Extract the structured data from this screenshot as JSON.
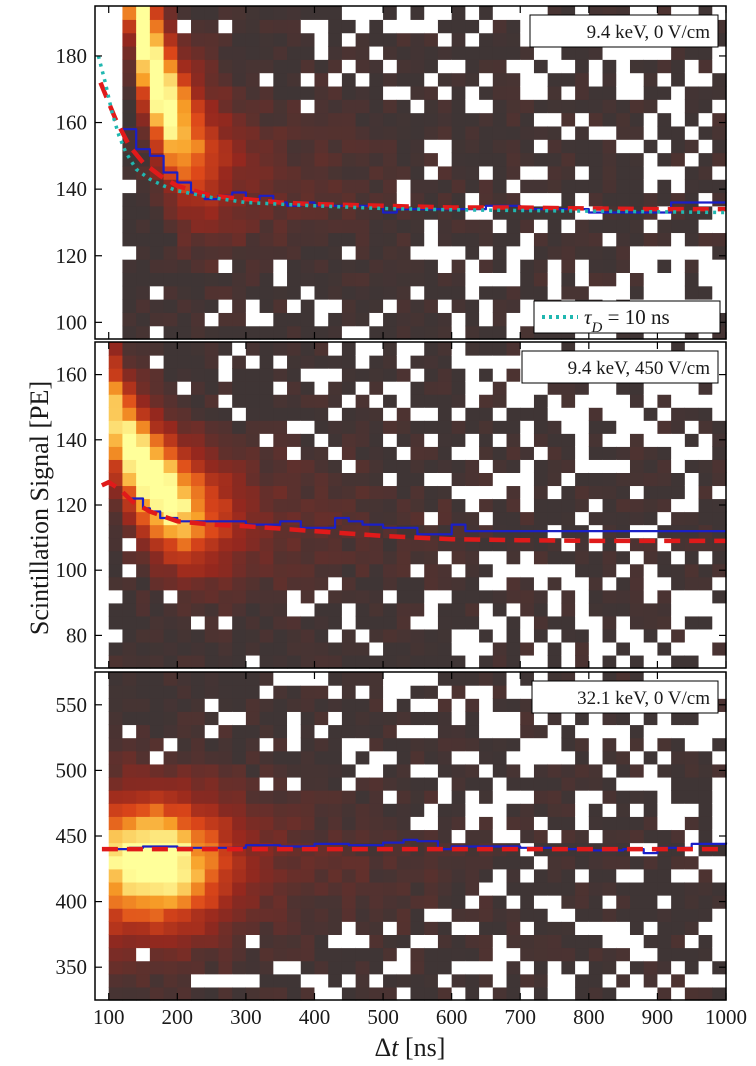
{
  "figure": {
    "ylabel": "Scintillation Signal [PE]",
    "xlabel_prefix": "Δ",
    "xlabel_var": "t",
    "xlabel_unit": " [ns]"
  },
  "colors": {
    "histogram_empty": "#ffffff",
    "histogram_low": "#3f3535",
    "histogram_high": "#ffff9a",
    "blue_curve": "#1a1fc8",
    "red_dashed": "#e01a1a",
    "cyan_dotted": "#20b7b0"
  },
  "chart_data": [
    {
      "type": "heatmap",
      "panel_label": "9.4 keV, 0 V/cm",
      "xlim": [
        80,
        1000
      ],
      "ylim": [
        95,
        195
      ],
      "x_ticks": [
        100,
        200,
        300,
        400,
        500,
        600,
        700,
        800,
        900,
        1000
      ],
      "y_ticks": [
        100,
        120,
        140,
        160,
        180
      ],
      "show_x_tick_labels": false,
      "peak": {
        "x0": 160,
        "y": 142,
        "y_drop": 38,
        "tau": 55,
        "sx": 70,
        "sy": 16
      },
      "data_start_x": 120,
      "blue_curve": {
        "x": [
          120,
          140,
          160,
          180,
          200,
          220,
          240,
          260,
          280,
          300,
          320,
          340,
          360,
          380,
          400,
          450,
          500,
          520,
          540,
          560,
          600,
          650,
          700,
          750,
          800,
          850,
          900,
          920,
          950,
          1000
        ],
        "y": [
          158,
          152,
          150,
          145,
          142,
          139,
          137,
          138,
          139,
          137,
          138,
          136,
          135,
          136,
          135,
          135,
          133,
          134,
          134,
          134,
          134,
          135,
          134,
          134,
          133,
          133,
          133,
          136,
          136,
          136
        ]
      },
      "red_dashed": {
        "x": [
          88,
          100,
          110,
          120,
          130,
          150,
          175,
          200,
          250,
          300,
          350,
          400,
          500,
          600,
          700,
          800,
          900,
          1000
        ],
        "y": [
          172,
          166,
          161,
          157,
          153,
          148,
          144,
          141,
          138,
          137,
          136,
          135.5,
          135,
          134.5,
          134.5,
          134.2,
          134,
          134
        ]
      },
      "cyan_dotted": {
        "x": [
          85,
          95,
          105,
          115,
          125,
          140,
          160,
          180,
          200,
          250,
          300,
          400,
          500,
          600,
          700,
          800,
          900,
          1000
        ],
        "y": [
          180,
          172,
          163,
          156,
          151,
          146,
          143,
          141,
          139.5,
          137.5,
          136,
          135,
          134.2,
          133.8,
          133.6,
          133.4,
          133.2,
          133
        ]
      },
      "legend": {
        "symbol": "τ",
        "subscript": "D",
        "text": " = 10 ns"
      }
    },
    {
      "type": "heatmap",
      "panel_label": "9.4 keV, 450 V/cm",
      "xlim": [
        80,
        1000
      ],
      "ylim": [
        70,
        170
      ],
      "x_ticks": [
        100,
        200,
        300,
        400,
        500,
        600,
        700,
        800,
        900,
        1000
      ],
      "y_ticks": [
        80,
        100,
        120,
        140,
        160
      ],
      "show_x_tick_labels": false,
      "peak": {
        "x0": 160,
        "y": 114,
        "y_drop": 14,
        "tau": 60,
        "sx": 80,
        "sy": 14
      },
      "data_start_x": 100,
      "blue_curve": {
        "x": [
          130,
          150,
          160,
          175,
          200,
          250,
          300,
          350,
          380,
          400,
          430,
          450,
          470,
          500,
          550,
          580,
          600,
          620,
          650,
          700,
          800,
          900,
          1000
        ],
        "y": [
          122,
          119,
          118,
          116,
          115,
          115,
          114,
          115,
          113,
          113,
          116,
          115,
          114,
          113,
          111,
          111,
          114,
          112,
          112,
          112,
          112,
          112,
          112
        ]
      },
      "red_dashed": {
        "x": [
          90,
          100,
          115,
          135,
          160,
          200,
          250,
          300,
          400,
          500,
          600,
          700,
          800,
          900,
          1000
        ],
        "y": [
          126,
          127,
          125,
          121,
          118,
          115,
          114,
          113.5,
          112,
          110.5,
          109.5,
          109.2,
          109,
          109,
          109
        ]
      }
    },
    {
      "type": "heatmap",
      "panel_label": "32.1 keV, 0 V/cm",
      "xlim": [
        80,
        1000
      ],
      "ylim": [
        325,
        575
      ],
      "x_ticks": [
        100,
        200,
        300,
        400,
        500,
        600,
        700,
        800,
        900,
        1000
      ],
      "y_ticks": [
        350,
        400,
        450,
        500,
        550
      ],
      "show_x_tick_labels": true,
      "peak": {
        "x0": 160,
        "y": 430,
        "y_drop": 0,
        "tau": 60,
        "sx": 85,
        "sy": 38
      },
      "data_start_x": 100,
      "blue_curve": {
        "x": [
          100,
          130,
          150,
          180,
          200,
          250,
          300,
          350,
          400,
          450,
          500,
          530,
          550,
          580,
          600,
          650,
          700,
          750,
          800,
          850,
          880,
          900,
          950,
          1000
        ],
        "y": [
          440,
          441,
          442,
          442,
          441,
          441,
          443,
          442,
          444,
          443,
          445,
          447,
          446,
          440,
          442,
          442,
          441,
          440,
          439,
          440,
          437,
          441,
          444,
          445
        ]
      },
      "red_dashed": {
        "x": [
          90,
          200,
          300,
          400,
          500,
          600,
          700,
          800,
          900,
          1000
        ],
        "y": [
          440,
          440,
          440,
          440,
          440,
          440,
          440,
          440,
          440,
          440
        ]
      }
    }
  ]
}
